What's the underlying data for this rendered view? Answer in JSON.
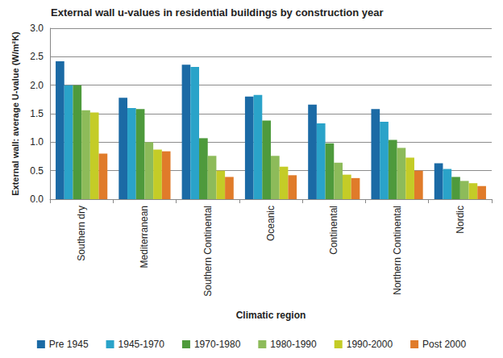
{
  "chart_data": {
    "type": "bar",
    "title": "External wall u-values in residential buildings by construction year",
    "x_label": "Climatic region",
    "y_label": "External wall: average U-value (W/m²K)",
    "categories": [
      "Southern dry",
      "Mediterranean",
      "Southern Continental",
      "Oceanic",
      "Continental",
      "Northern Continental",
      "Nordic"
    ],
    "series": [
      {
        "name": "Pre 1945",
        "color": "#1b6aa5",
        "values": [
          2.42,
          1.78,
          2.36,
          1.8,
          1.66,
          1.58,
          0.63
        ]
      },
      {
        "name": "1945-1970",
        "color": "#2aa3c9",
        "values": [
          2.0,
          1.6,
          2.32,
          1.83,
          1.33,
          1.36,
          0.53
        ]
      },
      {
        "name": "1970-1980",
        "color": "#4e9a3c",
        "values": [
          2.0,
          1.58,
          1.07,
          1.38,
          0.98,
          1.04,
          0.39
        ]
      },
      {
        "name": "1980-1990",
        "color": "#8dbb5a",
        "values": [
          1.56,
          1.0,
          0.76,
          0.76,
          0.64,
          0.9,
          0.32
        ]
      },
      {
        "name": "1990-2000",
        "color": "#c4cc27",
        "values": [
          1.52,
          0.87,
          0.5,
          0.57,
          0.43,
          0.73,
          0.28
        ]
      },
      {
        "name": "Post 2000",
        "color": "#e07b2a",
        "values": [
          0.8,
          0.84,
          0.39,
          0.42,
          0.37,
          0.5,
          0.23
        ]
      }
    ],
    "ylim": [
      0,
      3
    ],
    "yticks": [
      {
        "value": 0,
        "label": "0.0"
      },
      0.5,
      {
        "value": 1,
        "label": "1.0"
      },
      1.5,
      {
        "value": 2,
        "label": "2.0"
      },
      2.5,
      {
        "value": 3,
        "label": "3.0"
      }
    ],
    "grid": true,
    "legend": "bottom"
  }
}
